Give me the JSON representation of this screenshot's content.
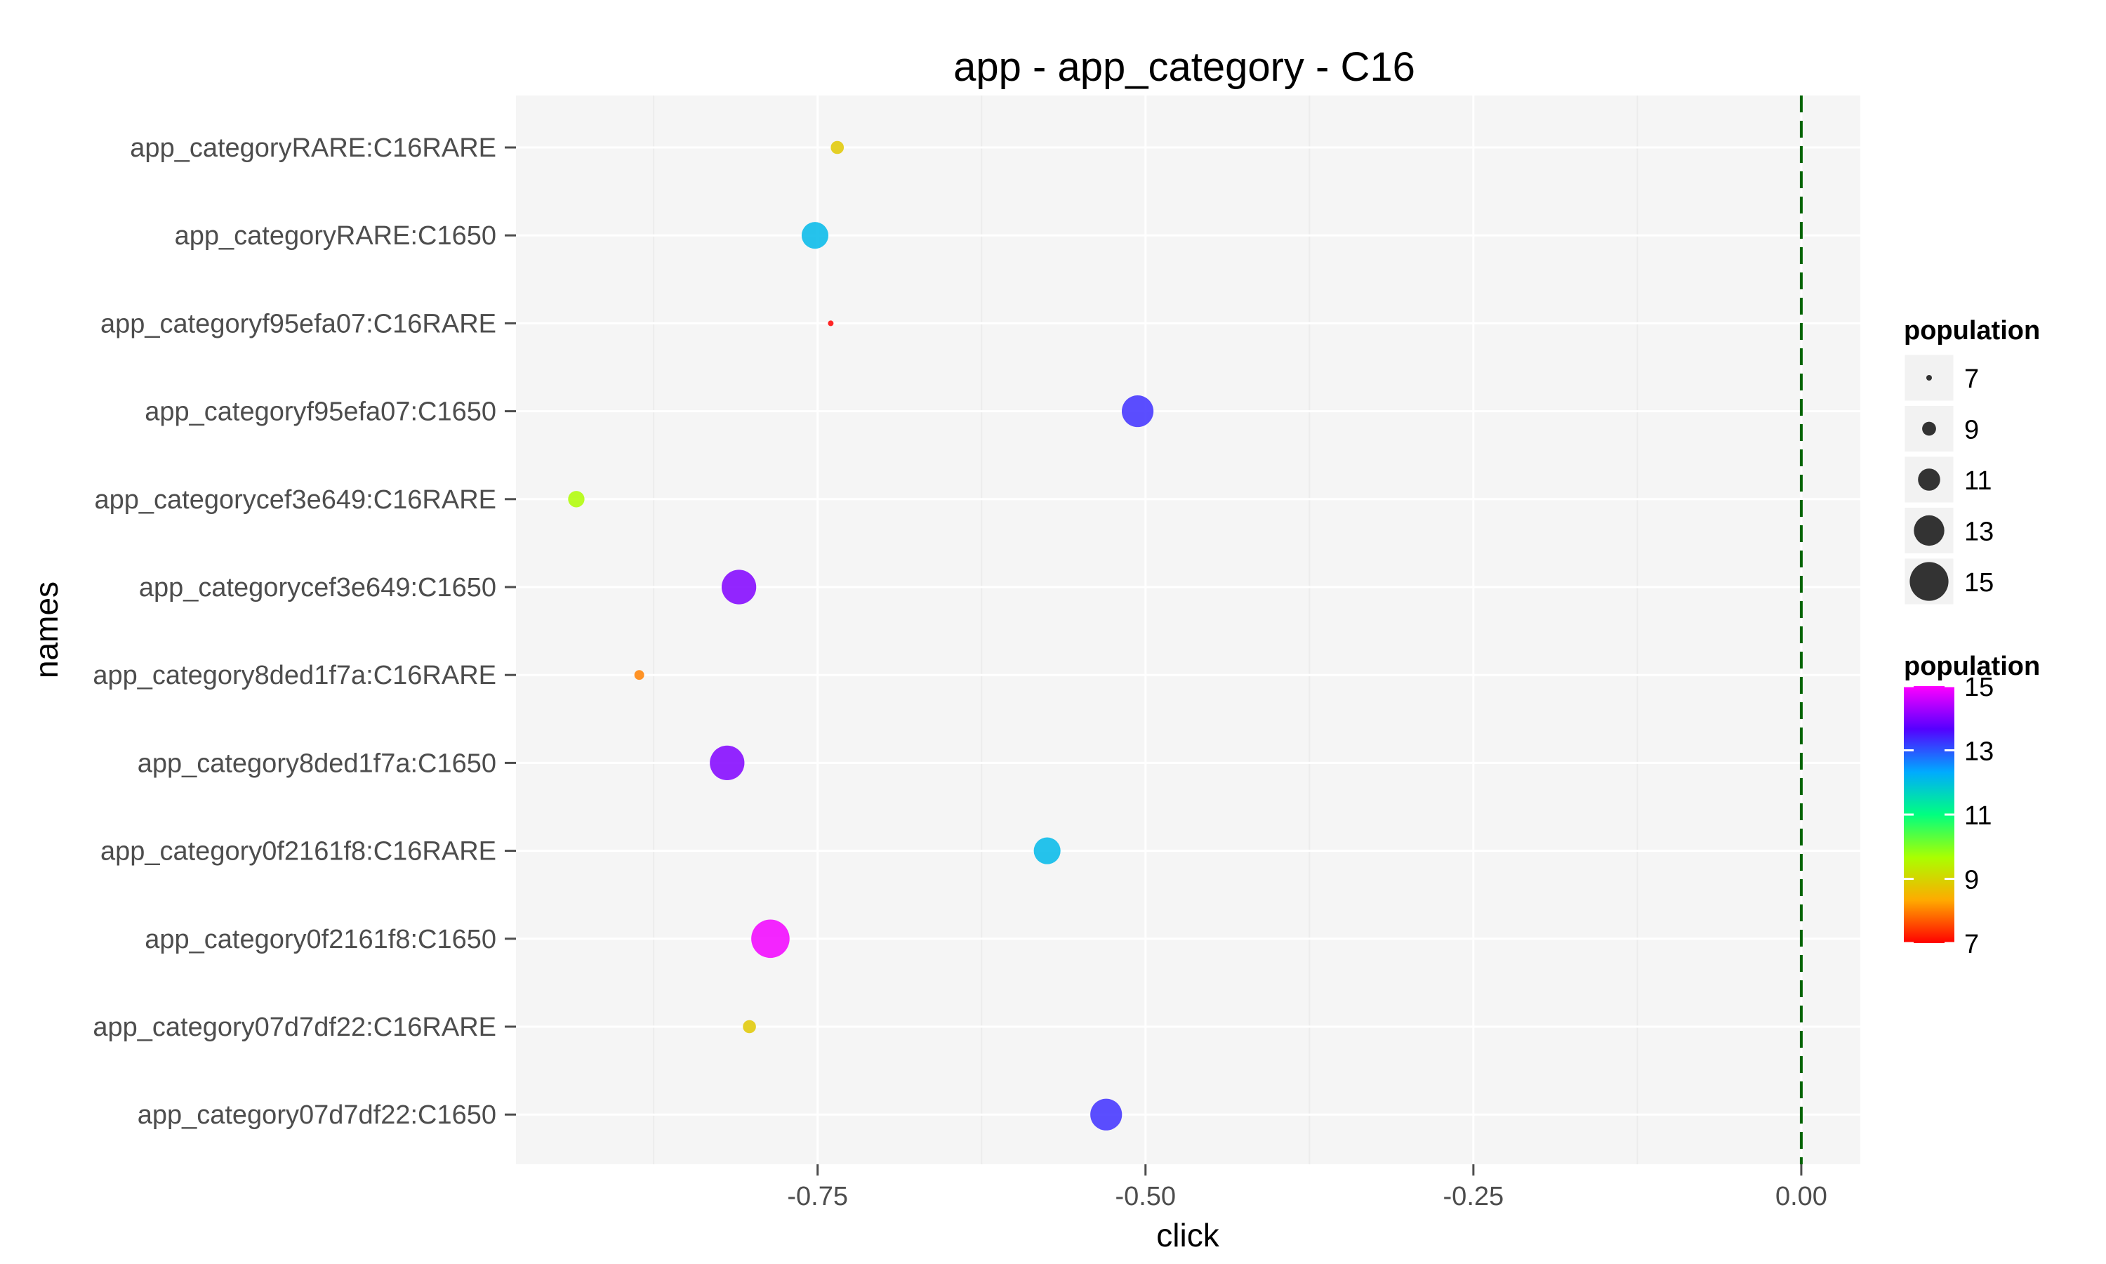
{
  "chart_data": {
    "type": "scatter",
    "title": "app - app_category - C16",
    "xlabel": "click",
    "ylabel": "names",
    "xlim": [
      -0.98,
      0.045
    ],
    "x_ticks": [
      -0.75,
      -0.5,
      -0.25,
      0.0
    ],
    "x_tick_labels": [
      "-0.75",
      "-0.50",
      "-0.25",
      "0.00"
    ],
    "reference_line": {
      "x": 0.0,
      "style": "dashed",
      "color": "#006400"
    },
    "categories": [
      "app_categoryRARE:C16RARE",
      "app_categoryRARE:C1650",
      "app_categoryf95efa07:C16RARE",
      "app_categoryf95efa07:C1650",
      "app_categorycef3e649:C16RARE",
      "app_categorycef3e649:C1650",
      "app_category8ded1f7a:C16RARE",
      "app_category8ded1f7a:C1650",
      "app_category0f2161f8:C16RARE",
      "app_category0f2161f8:C1650",
      "app_category07d7df22:C16RARE",
      "app_category07d7df22:C1650"
    ],
    "points": [
      {
        "name": "app_categoryRARE:C16RARE",
        "click": -0.735,
        "population": 8.8
      },
      {
        "name": "app_categoryRARE:C1650",
        "click": -0.752,
        "population": 12.1
      },
      {
        "name": "app_categoryf95efa07:C16RARE",
        "click": -0.74,
        "population": 7.0
      },
      {
        "name": "app_categoryf95efa07:C1650",
        "click": -0.506,
        "population": 13.3
      },
      {
        "name": "app_categorycef3e649:C16RARE",
        "click": -0.934,
        "population": 9.6
      },
      {
        "name": "app_categorycef3e649:C1650",
        "click": -0.81,
        "population": 14.0
      },
      {
        "name": "app_category8ded1f7a:C16RARE",
        "click": -0.886,
        "population": 8.0
      },
      {
        "name": "app_category8ded1f7a:C1650",
        "click": -0.819,
        "population": 14.0
      },
      {
        "name": "app_category0f2161f8:C16RARE",
        "click": -0.575,
        "population": 12.1
      },
      {
        "name": "app_category0f2161f8:C1650",
        "click": -0.786,
        "population": 14.9
      },
      {
        "name": "app_category07d7df22:C16RARE",
        "click": -0.802,
        "population": 8.8
      },
      {
        "name": "app_category07d7df22:C1650",
        "click": -0.53,
        "population": 13.3
      }
    ],
    "grid": true,
    "size_legend": {
      "title": "population",
      "position": "right",
      "values": [
        7,
        9,
        11,
        13,
        15
      ],
      "labels": [
        "7",
        "9",
        "11",
        "13",
        "15"
      ]
    },
    "color_legend": {
      "title": "population",
      "position": "right",
      "range": [
        7,
        15
      ],
      "ticks": [
        7,
        9,
        11,
        13,
        15
      ],
      "labels": [
        "7",
        "9",
        "11",
        "13",
        "15"
      ],
      "colors": [
        "#ff0000",
        "#ffaa00",
        "#aaff00",
        "#00ff80",
        "#00aaff",
        "#5500ff",
        "#ff00ff"
      ]
    }
  }
}
